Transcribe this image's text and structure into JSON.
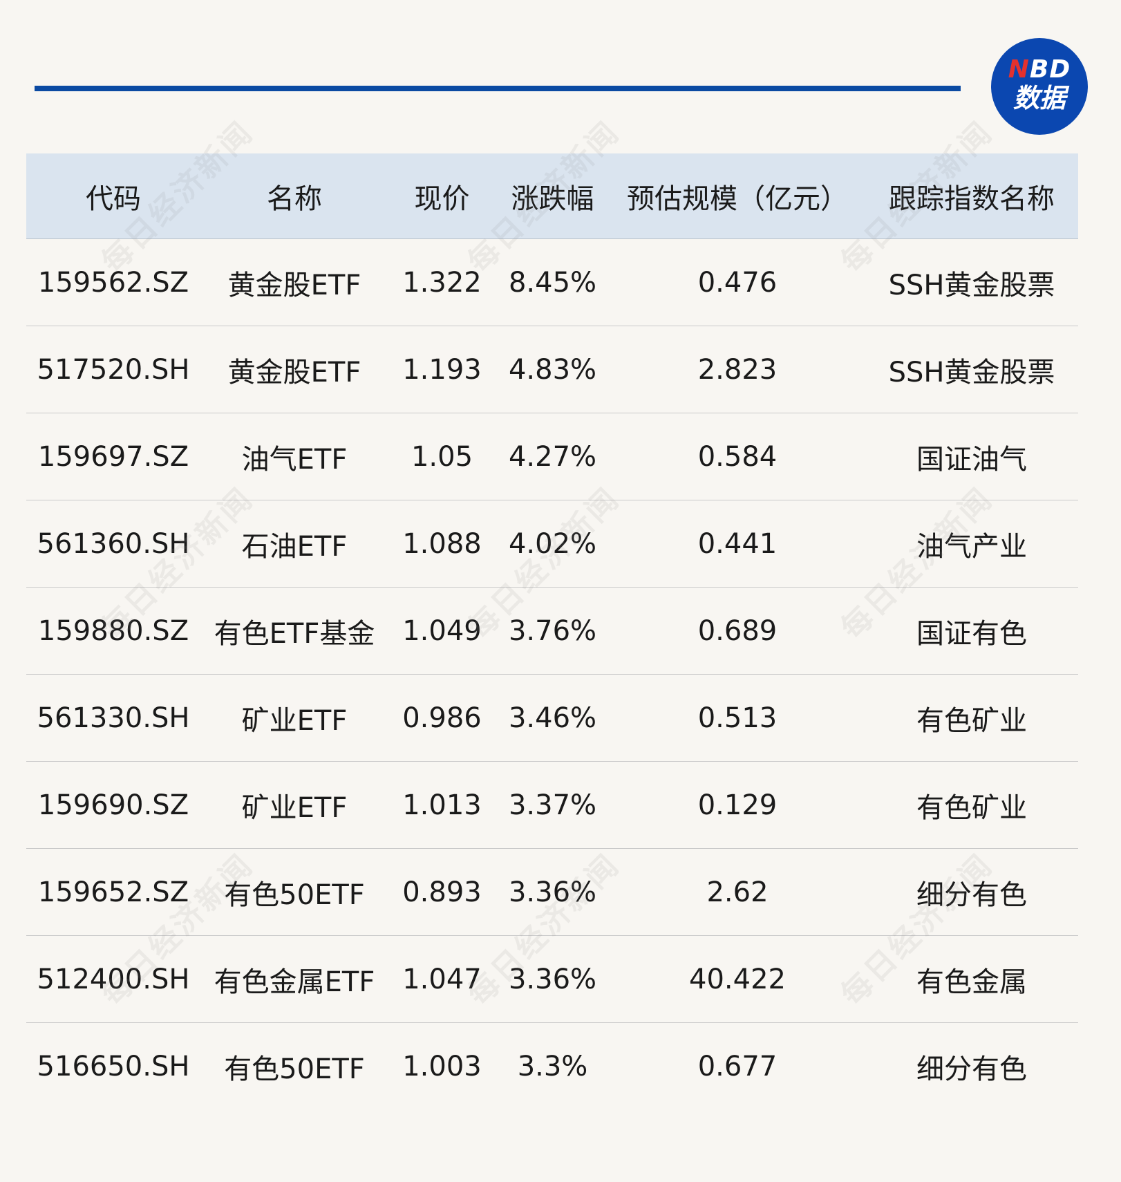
{
  "brand": {
    "logo_top": "NBD",
    "logo_bottom": "数据",
    "accent": "#0b4aa2",
    "logo_red": "#e4312e"
  },
  "watermark": "每日经济新闻",
  "table": {
    "headers": [
      "代码",
      "名称",
      "现价",
      "涨跌幅",
      "预估规模（亿元）",
      "跟踪指数名称"
    ],
    "rows": [
      [
        "159562.SZ",
        "黄金股ETF",
        "1.322",
        "8.45%",
        "0.476",
        "SSH黄金股票"
      ],
      [
        "517520.SH",
        "黄金股ETF",
        "1.193",
        "4.83%",
        "2.823",
        "SSH黄金股票"
      ],
      [
        "159697.SZ",
        "油气ETF",
        "1.05",
        "4.27%",
        "0.584",
        "国证油气"
      ],
      [
        "561360.SH",
        "石油ETF",
        "1.088",
        "4.02%",
        "0.441",
        "油气产业"
      ],
      [
        "159880.SZ",
        "有色ETF基金",
        "1.049",
        "3.76%",
        "0.689",
        "国证有色"
      ],
      [
        "561330.SH",
        "矿业ETF",
        "0.986",
        "3.46%",
        "0.513",
        "有色矿业"
      ],
      [
        "159690.SZ",
        "矿业ETF",
        "1.013",
        "3.37%",
        "0.129",
        "有色矿业"
      ],
      [
        "159652.SZ",
        "有色50ETF",
        "0.893",
        "3.36%",
        "2.62",
        "细分有色"
      ],
      [
        "512400.SH",
        "有色金属ETF",
        "1.047",
        "3.36%",
        "40.422",
        "有色金属"
      ],
      [
        "516650.SH",
        "有色50ETF",
        "1.003",
        "3.3%",
        "0.677",
        "细分有色"
      ]
    ]
  }
}
